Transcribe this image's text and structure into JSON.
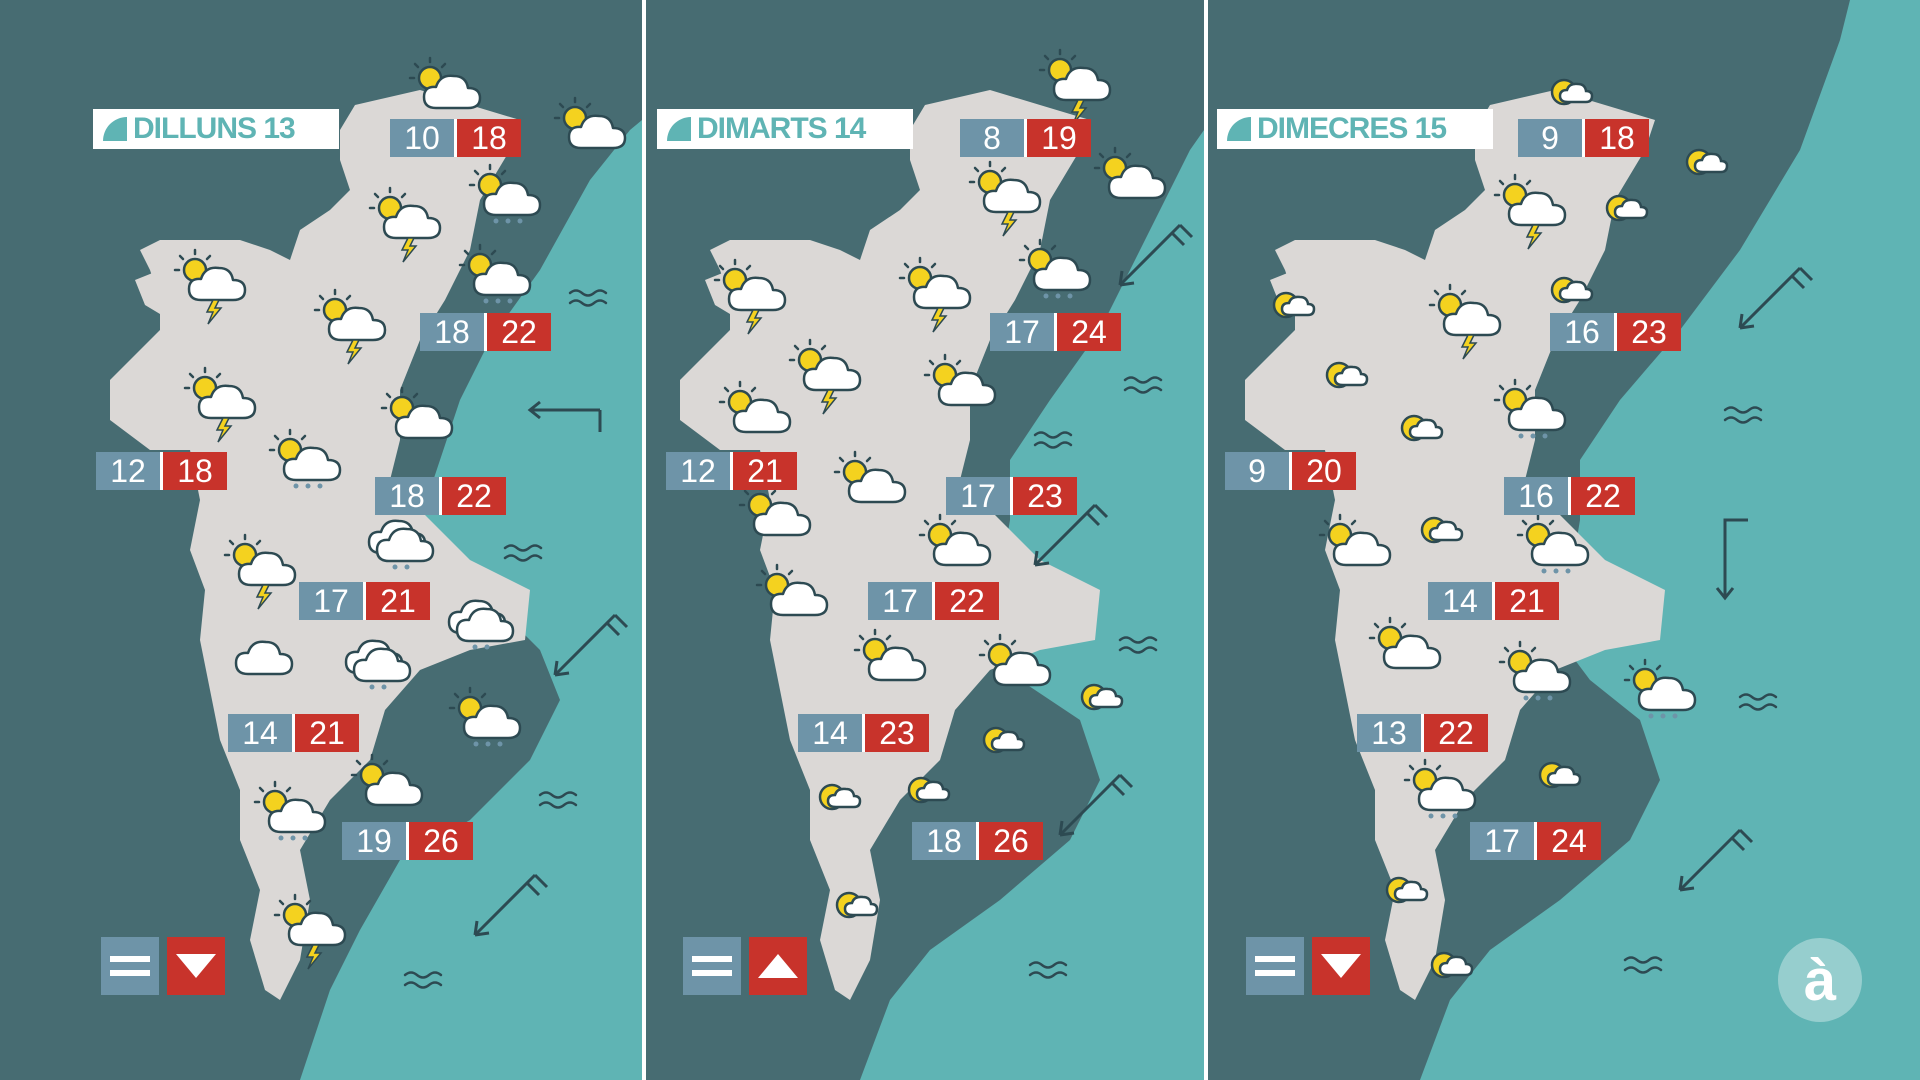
{
  "colors": {
    "dark_sea": "#476C72",
    "sea": "#5FB4B4",
    "land": "#DBD8D6",
    "min_box": "#6E94A8",
    "max_box": "#C8332B",
    "divider": "#FFFFFF",
    "arrow": "#2D4A52"
  },
  "panels": [
    {
      "day": "DILLUNS 13",
      "temps": [
        {
          "min": "10",
          "max": "18"
        },
        {
          "min": "18",
          "max": "22"
        },
        {
          "min": "12",
          "max": "18"
        },
        {
          "min": "18",
          "max": "22"
        },
        {
          "min": "17",
          "max": "21"
        },
        {
          "min": "14",
          "max": "21"
        },
        {
          "min": "19",
          "max": "26"
        }
      ],
      "trend": [
        "equal-icon",
        "trend-down-icon"
      ]
    },
    {
      "day": "DIMARTS 14",
      "temps": [
        {
          "min": "8",
          "max": "19"
        },
        {
          "min": "17",
          "max": "24"
        },
        {
          "min": "12",
          "max": "21"
        },
        {
          "min": "17",
          "max": "23"
        },
        {
          "min": "17",
          "max": "22"
        },
        {
          "min": "14",
          "max": "23"
        },
        {
          "min": "18",
          "max": "26"
        }
      ],
      "trend": [
        "equal-icon",
        "trend-up-icon"
      ]
    },
    {
      "day": "DIMECRES 15",
      "temps": [
        {
          "min": "9",
          "max": "18"
        },
        {
          "min": "16",
          "max": "23"
        },
        {
          "min": "9",
          "max": "20"
        },
        {
          "min": "16",
          "max": "22"
        },
        {
          "min": "14",
          "max": "21"
        },
        {
          "min": "13",
          "max": "22"
        },
        {
          "min": "17",
          "max": "24"
        }
      ],
      "trend": [
        "equal-icon",
        "trend-down-icon"
      ]
    }
  ],
  "logo": {
    "text": "à"
  }
}
